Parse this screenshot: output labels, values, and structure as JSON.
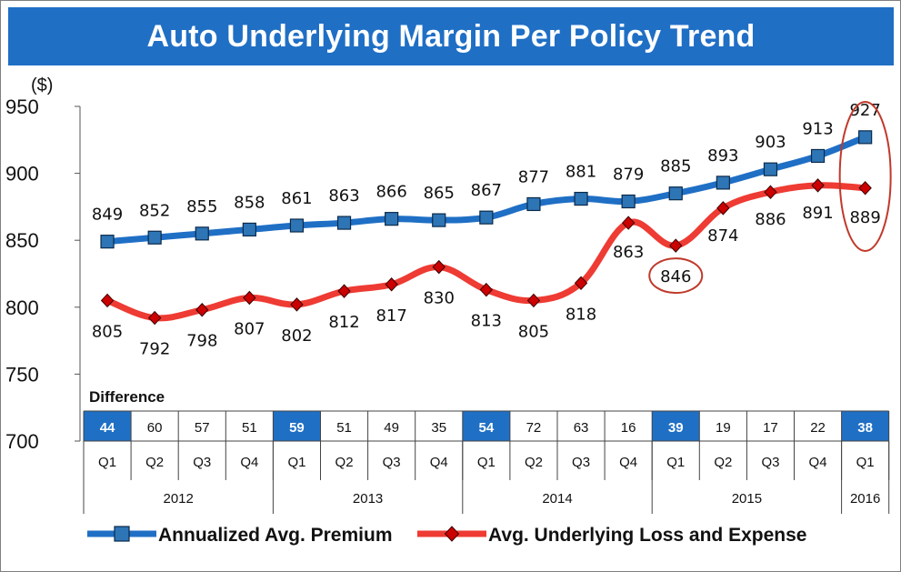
{
  "title": "Auto Underlying Margin Per Policy Trend",
  "unit_label": "($)",
  "difference_label": "Difference",
  "colors": {
    "title_bg": "#1f6fc5",
    "premium_line": "#1f6fc5",
    "premium_marker": "#2e75b6",
    "loss_line": "#ee3b33",
    "loss_marker": "#cc0000",
    "highlight_cell": "#1f6fc5",
    "annotation_circle": "#c0392b"
  },
  "chart_data": {
    "type": "line",
    "title": "Auto Underlying Margin Per Policy Trend",
    "ylabel": "($)",
    "ylim": [
      700,
      950
    ],
    "yticks": [
      700,
      750,
      800,
      850,
      900,
      950
    ],
    "quarters": [
      "Q1",
      "Q2",
      "Q3",
      "Q4",
      "Q1",
      "Q2",
      "Q3",
      "Q4",
      "Q1",
      "Q2",
      "Q3",
      "Q4",
      "Q1",
      "Q2",
      "Q3",
      "Q4",
      "Q1"
    ],
    "years": [
      {
        "label": "2012",
        "count": 4
      },
      {
        "label": "2013",
        "count": 4
      },
      {
        "label": "2014",
        "count": 4
      },
      {
        "label": "2015",
        "count": 4
      },
      {
        "label": "2016",
        "count": 1
      }
    ],
    "series": [
      {
        "name": "Annualized Avg. Premium",
        "values": [
          849,
          852,
          855,
          858,
          861,
          863,
          866,
          865,
          867,
          877,
          881,
          879,
          885,
          893,
          903,
          913,
          927
        ]
      },
      {
        "name": "Avg. Underlying Loss and Expense",
        "values": [
          805,
          792,
          798,
          807,
          802,
          812,
          817,
          830,
          813,
          805,
          818,
          863,
          846,
          874,
          886,
          891,
          889
        ]
      }
    ],
    "difference": [
      44,
      60,
      57,
      51,
      59,
      51,
      49,
      35,
      54,
      72,
      63,
      16,
      39,
      19,
      17,
      22,
      38
    ],
    "highlighted_difference": [
      0,
      4,
      8,
      12,
      16
    ],
    "annotations": [
      "circle around 2015 Q1 loss value 846",
      "ellipse around 2016 Q1 values 927 and 889"
    ],
    "legend_position": "bottom",
    "grid": false
  }
}
